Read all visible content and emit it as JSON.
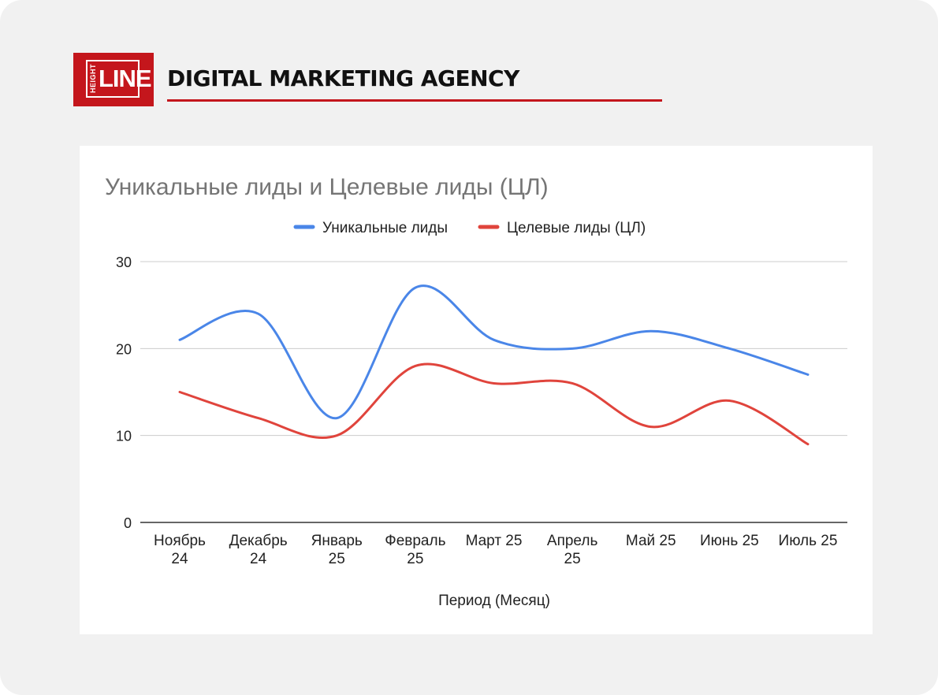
{
  "header": {
    "logo_text_vertical": "HEIGHT",
    "logo_text_main": "LINE",
    "agency_name": "DIGITAL MARKETING AGENCY"
  },
  "colors": {
    "brand_red": "#c4161c",
    "series_blue": "#4a86e8",
    "series_red": "#e0443c"
  },
  "chart_data": {
    "type": "line",
    "title": "Уникальные лиды и Целевые лиды (ЦЛ)",
    "xlabel": "Период (Месяц)",
    "ylabel": "",
    "ylim": [
      0,
      30
    ],
    "yticks": [
      "0",
      "10",
      "20",
      "30"
    ],
    "grid": true,
    "legend_position": "top",
    "smooth": true,
    "categories": [
      [
        "Ноябрь",
        "24"
      ],
      [
        "Декабрь",
        "24"
      ],
      [
        "Январь",
        "25"
      ],
      [
        "Февраль",
        "25"
      ],
      [
        "Март 25"
      ],
      [
        "Апрель",
        "25"
      ],
      [
        "Май 25"
      ],
      [
        "Июнь 25"
      ],
      [
        "Июль 25"
      ]
    ],
    "series": [
      {
        "name": "Уникальные лиды",
        "color": "#4a86e8",
        "values": [
          21,
          24,
          12,
          27,
          21,
          20,
          22,
          20,
          17
        ]
      },
      {
        "name": "Целевые лиды (ЦЛ)",
        "color": "#e0443c",
        "values": [
          15,
          12,
          10,
          18,
          16,
          16,
          11,
          14,
          9
        ]
      }
    ]
  }
}
